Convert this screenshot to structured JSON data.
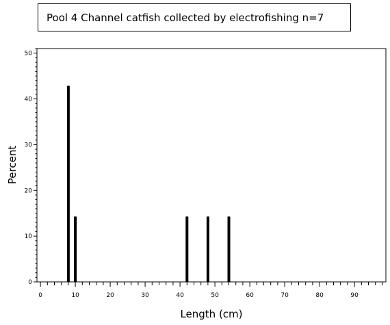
{
  "chart_data": {
    "type": "bar",
    "title": "Pool 4 Channel catfish collected by electrofishing n=7",
    "xlabel": "Length (cm)",
    "ylabel": "Percent",
    "xlim": [
      -1,
      99
    ],
    "ylim": [
      0,
      51
    ],
    "xticks": [
      0,
      10,
      20,
      30,
      40,
      50,
      60,
      70,
      80,
      90
    ],
    "yticks": [
      0,
      10,
      20,
      30,
      40,
      50
    ],
    "x": [
      8,
      10,
      42,
      48,
      54
    ],
    "values": [
      42.86,
      14.29,
      14.29,
      14.29,
      14.29
    ],
    "grid": false,
    "colors": {
      "bar": "#000000",
      "axis": "#000000"
    }
  }
}
